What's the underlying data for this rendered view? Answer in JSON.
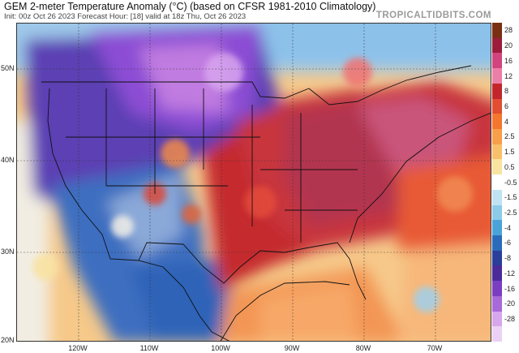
{
  "header": {
    "title": "GEM 2-meter Temperature Anomaly (°C) (based on CFSR 1981-2010 Climatology)",
    "subtitle": "Init: 00z Oct 26 2023   Forecast Hour: [18]   valid at 18z Thu, Oct 26 2023",
    "brand": "TROPICALTIDBITS.COM"
  },
  "axes": {
    "lat_labels": [
      "50N",
      "40N",
      "30N",
      "20N"
    ],
    "lon_labels": [
      "120W",
      "110W",
      "100W",
      "90W",
      "80W",
      "70W"
    ]
  },
  "colorbar": {
    "labels": [
      "28",
      "20",
      "16",
      "12",
      "8",
      "6",
      "4",
      "2.5",
      "1.5",
      "0.5",
      "-0.5",
      "-1.5",
      "-2.5",
      "-4",
      "-6",
      "-8",
      "-12",
      "-16",
      "-20",
      "-28"
    ],
    "colors": [
      "#7a2f12",
      "#9b1c3b",
      "#d1457f",
      "#ec7fa6",
      "#c2262b",
      "#e14e32",
      "#f4762f",
      "#f79f4a",
      "#f8c06a",
      "#f9e3a0",
      "#ffffff",
      "#bfe3f2",
      "#8ccbe8",
      "#4aa3d8",
      "#2b6bbb",
      "#2b3f9a",
      "#4b2a9a",
      "#7b3ec2",
      "#a86ad8",
      "#d7a6ec",
      "#ecd1f6"
    ]
  }
}
